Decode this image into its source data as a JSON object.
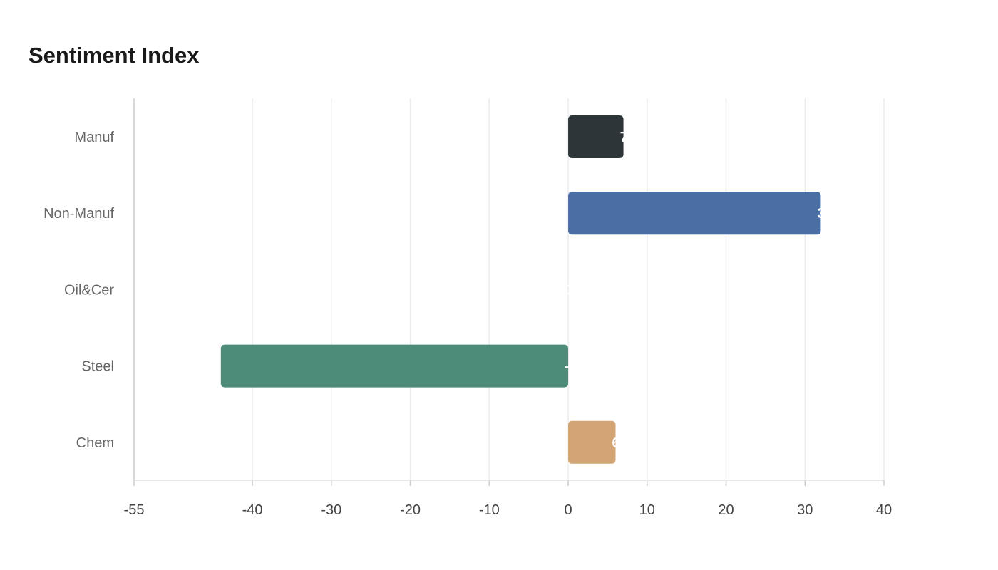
{
  "chart_data": {
    "type": "bar",
    "orientation": "horizontal",
    "title": "Sentiment Index",
    "categories": [
      "Manuf",
      "Non-Manuf",
      "Oil&Cer",
      "Steel",
      "Chem"
    ],
    "values": [
      7,
      32,
      0,
      -44,
      6
    ],
    "data_labels": [
      "7",
      "32",
      "0",
      "-44",
      "6"
    ],
    "colors": [
      "#2d3538",
      "#4a6fa5",
      "#5e8c7a",
      "#4e8c7a",
      "#d4a574"
    ],
    "xlim": [
      -55,
      40
    ],
    "xticks": [
      -55,
      -40,
      -30,
      -20,
      -10,
      0,
      10,
      20,
      30,
      40
    ],
    "xtick_labels": [
      "-55",
      "-40",
      "-30",
      "-20",
      "-10",
      "0",
      "10",
      "20",
      "30",
      "40"
    ],
    "grid": "vertical",
    "legend": "none",
    "xlabel": "",
    "ylabel": ""
  }
}
